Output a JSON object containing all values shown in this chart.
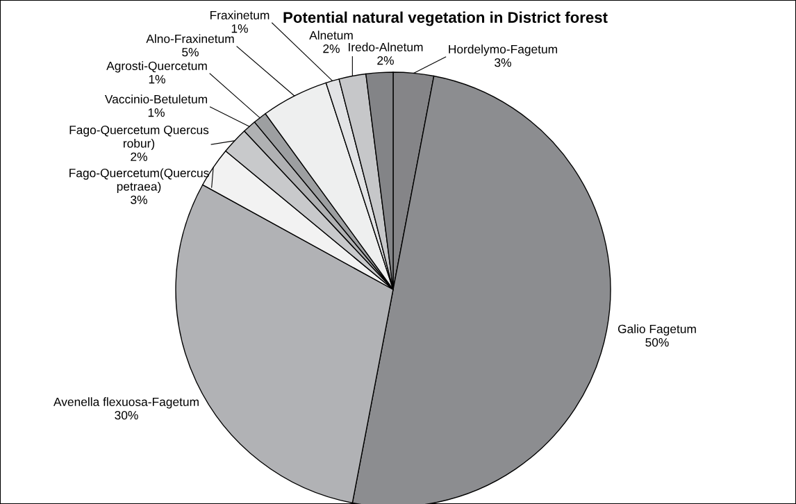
{
  "chart_data": {
    "type": "pie",
    "title": "Potential natural vegetation in District forest",
    "categories": [
      "Hordelymo-Fagetum",
      "Galio Fagetum",
      "Avenella flexuosa-Fagetum",
      "Fago-Quercetum(Quercus\npetraea)",
      "Fago-Quercetum Quercus\nrobur)",
      "Vaccinio-Betuletum",
      "Agrosti-Quercetum",
      "Alno-Fraxinetum",
      "Fraxinetum",
      "Alnetum",
      "Iredo-Alnetum"
    ],
    "values": [
      3,
      50,
      30,
      3,
      2,
      1,
      1,
      5,
      1,
      2,
      2
    ],
    "colors": [
      "#858588",
      "#8c8d90",
      "#b1b2b5",
      "#f2f2f2",
      "#c8c9cb",
      "#b0b1b3",
      "#9d9fa1",
      "#eeefef",
      "#e2e3e5",
      "#c6c7c9",
      "#838487"
    ],
    "value_labels": [
      "3%",
      "50%",
      "30%",
      "3%",
      "2%",
      "1%",
      "1%",
      "5%",
      "1%",
      "2%",
      "2%"
    ],
    "data_labels": true
  }
}
